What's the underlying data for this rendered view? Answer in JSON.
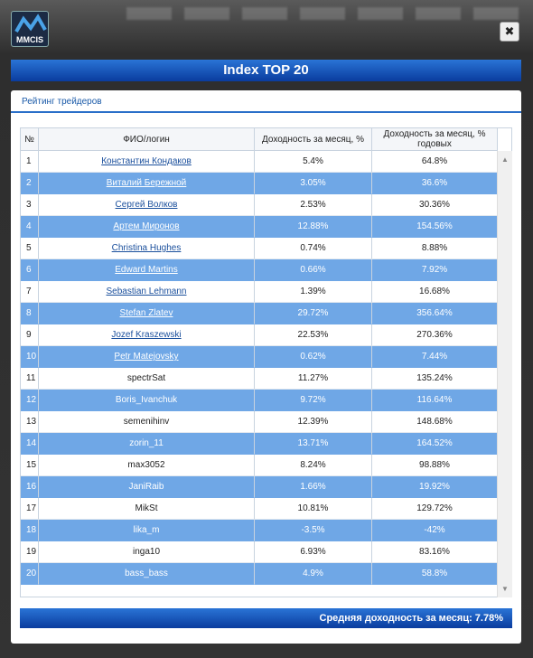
{
  "logo": {
    "text": "MMCIS"
  },
  "header": {
    "title": "Index TOP 20"
  },
  "panel": {
    "title": "Рейтинг трейдеров"
  },
  "table": {
    "headers": [
      "№",
      "ФИО/логин",
      "Доходность за месяц, %",
      "Доходность за месяц, % годовых"
    ],
    "rows": [
      [
        "1",
        "Константин Кондаков",
        "5.4%",
        "64.8%"
      ],
      [
        "2",
        "Виталий Бережной",
        "3.05%",
        "36.6%"
      ],
      [
        "3",
        "Сергей Волков",
        "2.53%",
        "30.36%"
      ],
      [
        "4",
        "Артем Миронов",
        "12.88%",
        "154.56%"
      ],
      [
        "5",
        "Christina Hughes",
        "0.74%",
        "8.88%"
      ],
      [
        "6",
        "Edward Martins",
        "0.66%",
        "7.92%"
      ],
      [
        "7",
        "Sebastian Lehmann",
        "1.39%",
        "16.68%"
      ],
      [
        "8",
        "Stefan Zlatev",
        "29.72%",
        "356.64%"
      ],
      [
        "9",
        "Jozef Kraszewski",
        "22.53%",
        "270.36%"
      ],
      [
        "10",
        "Petr Matejovsky",
        "0.62%",
        "7.44%"
      ],
      [
        "11",
        "spectrSat",
        "11.27%",
        "135.24%"
      ],
      [
        "12",
        "Boris_Ivanchuk",
        "9.72%",
        "116.64%"
      ],
      [
        "13",
        "semenihinv",
        "12.39%",
        "148.68%"
      ],
      [
        "14",
        "zorin_11",
        "13.71%",
        "164.52%"
      ],
      [
        "15",
        "max3052",
        "8.24%",
        "98.88%"
      ],
      [
        "16",
        "JaniRaib",
        "1.66%",
        "19.92%"
      ],
      [
        "17",
        "MikSt",
        "10.81%",
        "129.72%"
      ],
      [
        "18",
        "lika_m",
        "-3.5%",
        "-42%"
      ],
      [
        "19",
        "inga10",
        "6.93%",
        "83.16%"
      ],
      [
        "20",
        "bass_bass",
        "4.9%",
        "58.8%"
      ]
    ],
    "linked_rows": 10
  },
  "footer": {
    "text": "Средняя доходность за месяц: 7.78%"
  }
}
